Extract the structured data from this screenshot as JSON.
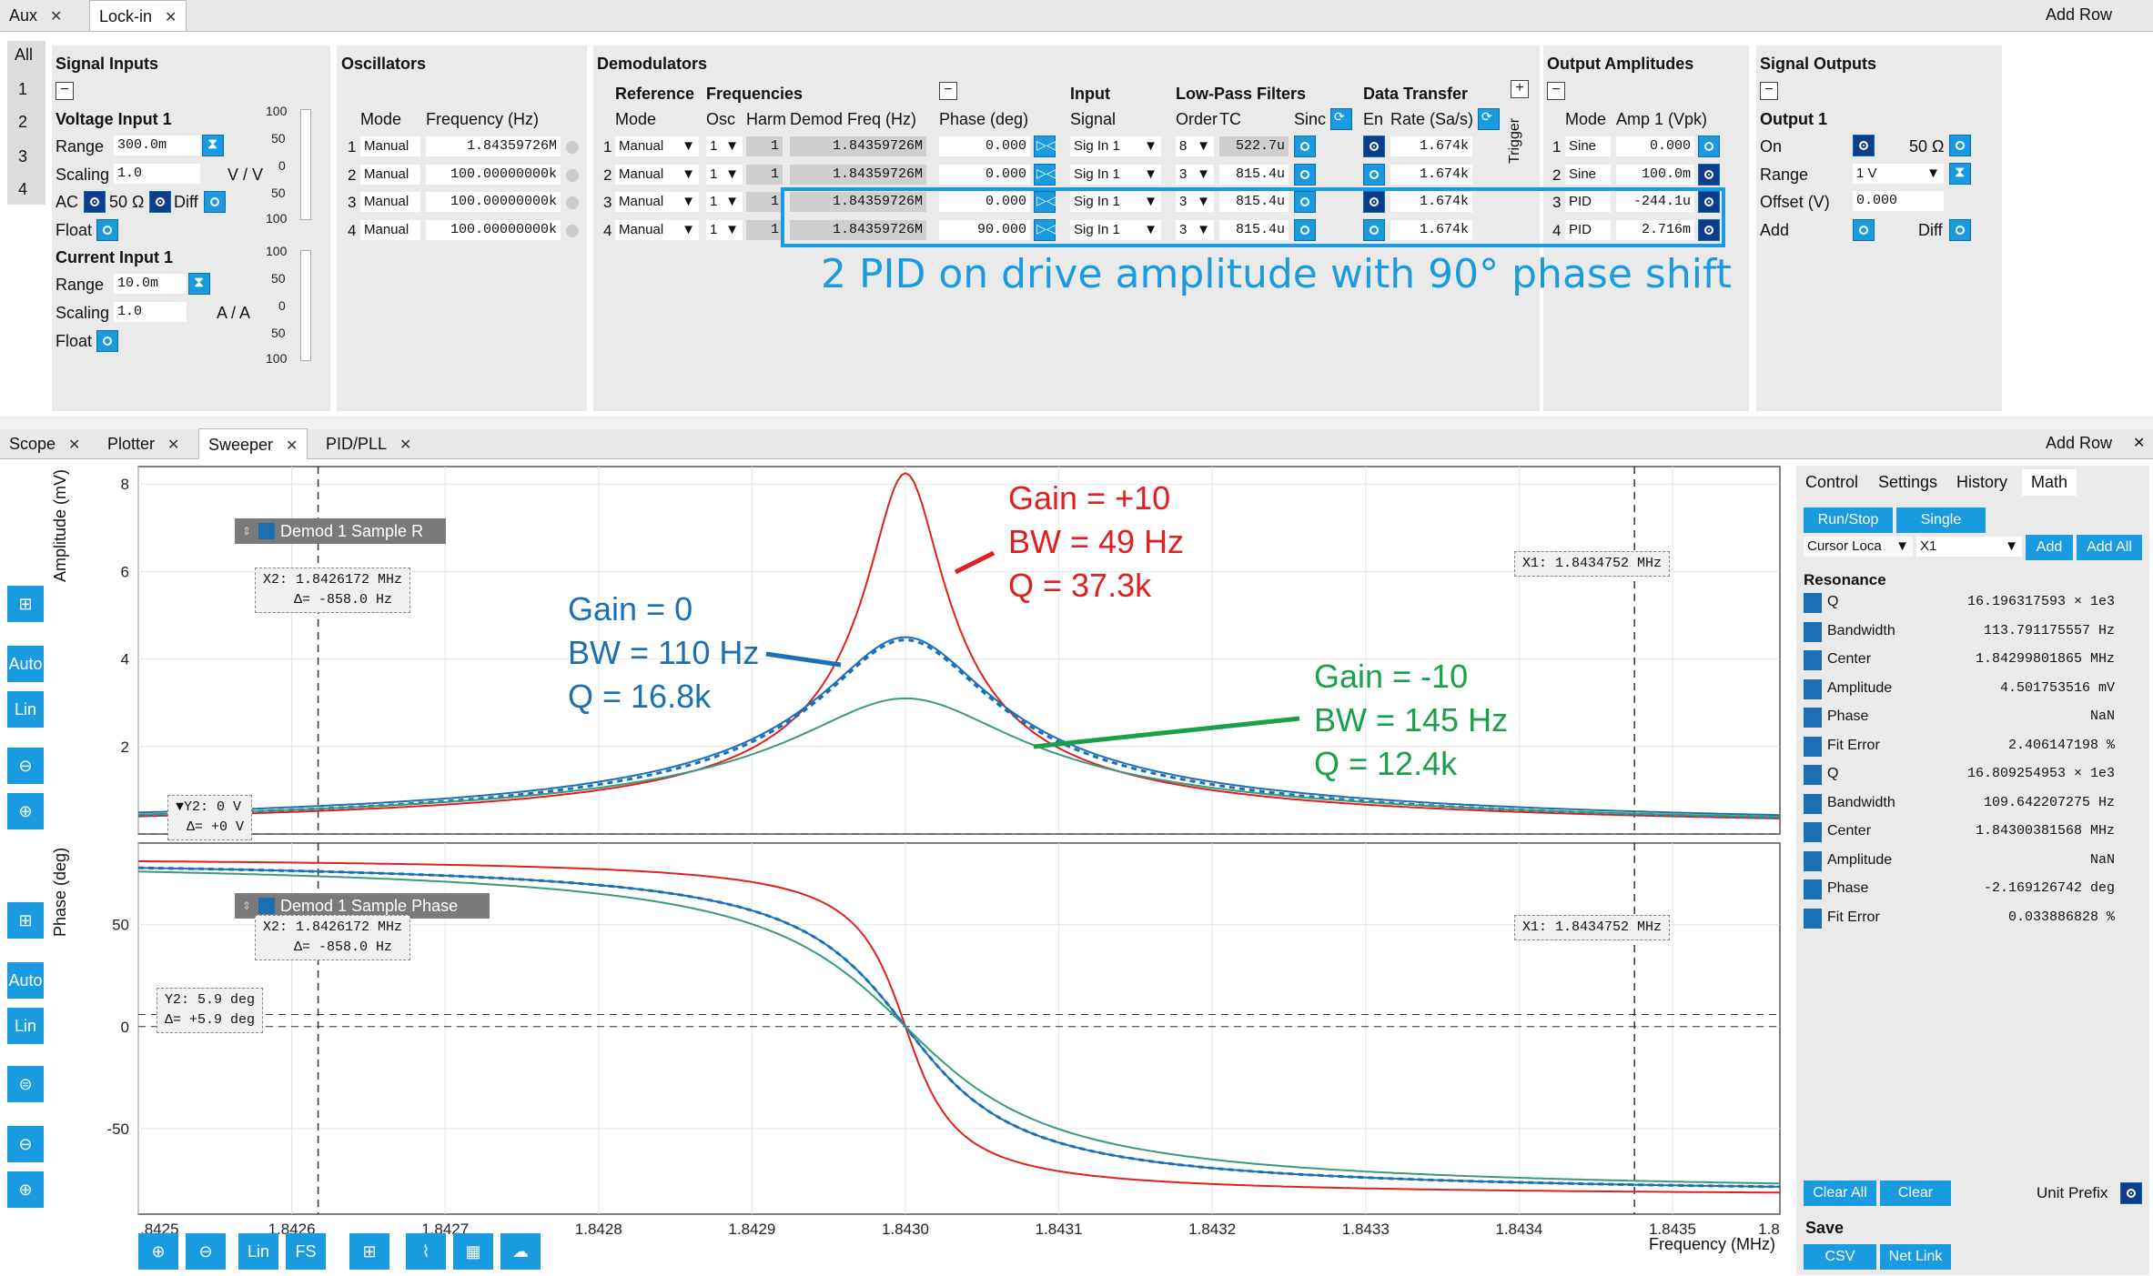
{
  "top_tabs": [
    {
      "label": "Aux"
    },
    {
      "label": "Lock-in"
    }
  ],
  "add_row": "Add Row",
  "side_tabs": [
    "All",
    "1",
    "2",
    "3",
    "4"
  ],
  "signal_inputs": {
    "title": "Signal Inputs",
    "voltage_input": "Voltage Input 1",
    "range_label": "Range",
    "range_value": "300.0m",
    "scaling_label": "Scaling",
    "scaling_value": "1.0",
    "scaling_unit": "V / V",
    "ac": "AC",
    "ohm": "50 Ω",
    "diff": "Diff",
    "float": "Float",
    "current_input": "Current Input 1",
    "crange_value": "10.0m",
    "cscaling_value": "1.0",
    "cscaling_unit": "A / A",
    "ticks": [
      "100",
      "50",
      "0",
      "50",
      "100"
    ]
  },
  "oscillators": {
    "title": "Oscillators",
    "col_mode": "Mode",
    "col_freq": "Frequency (Hz)",
    "rows": [
      {
        "n": "1",
        "mode": "Manual",
        "freq": "1.84359726M"
      },
      {
        "n": "2",
        "mode": "Manual",
        "freq": "100.00000000k"
      },
      {
        "n": "3",
        "mode": "Manual",
        "freq": "100.00000000k"
      },
      {
        "n": "4",
        "mode": "Manual",
        "freq": "100.00000000k"
      }
    ]
  },
  "demodulators": {
    "title": "Demodulators",
    "reference": "Reference",
    "frequencies": "Frequencies",
    "input": "Input",
    "lpf": "Low-Pass Filters",
    "data_transfer": "Data Transfer",
    "trigger": "Trigger",
    "cols": {
      "mode": "Mode",
      "osc": "Osc",
      "harm": "Harm",
      "demod_freq": "Demod Freq (Hz)",
      "phase": "Phase (deg)",
      "signal": "Signal",
      "order": "Order",
      "tc": "TC",
      "sinc": "Sinc",
      "en": "En",
      "rate": "Rate (Sa/s)"
    },
    "rows": [
      {
        "n": "1",
        "mode": "Manual",
        "osc": "1",
        "harm": "1",
        "freq": "1.84359726M",
        "phase": "0.000",
        "signal": "Sig In 1",
        "order": "8",
        "tc": "522.7u",
        "rate": "1.674k"
      },
      {
        "n": "2",
        "mode": "Manual",
        "osc": "1",
        "harm": "1",
        "freq": "1.84359726M",
        "phase": "0.000",
        "signal": "Sig In 1",
        "order": "3",
        "tc": "815.4u",
        "rate": "1.674k"
      },
      {
        "n": "3",
        "mode": "Manual",
        "osc": "1",
        "harm": "1",
        "freq": "1.84359726M",
        "phase": "0.000",
        "signal": "Sig In 1",
        "order": "3",
        "tc": "815.4u",
        "rate": "1.674k"
      },
      {
        "n": "4",
        "mode": "Manual",
        "osc": "1",
        "harm": "1",
        "freq": "1.84359726M",
        "phase": "90.000",
        "signal": "Sig In 1",
        "order": "3",
        "tc": "815.4u",
        "rate": "1.674k"
      }
    ]
  },
  "output_amplitudes": {
    "title": "Output Amplitudes",
    "col_mode": "Mode",
    "col_amp": "Amp 1 (Vpk)",
    "rows": [
      {
        "n": "1",
        "mode": "Sine",
        "amp": "0.000"
      },
      {
        "n": "2",
        "mode": "Sine",
        "amp": "100.0m"
      },
      {
        "n": "3",
        "mode": "PID",
        "amp": "-244.1u"
      },
      {
        "n": "4",
        "mode": "PID",
        "amp": "2.716m"
      }
    ]
  },
  "signal_outputs": {
    "title": "Signal Outputs",
    "output": "Output 1",
    "on": "On",
    "ohm": "50 Ω",
    "range": "Range",
    "range_value": "1 V",
    "offset": "Offset (V)",
    "offset_value": "0.000",
    "add": "Add",
    "diff": "Diff"
  },
  "pid_annotation": "2 PID on drive amplitude with 90° phase shift",
  "bottom_tabs": [
    {
      "label": "Scope"
    },
    {
      "label": "Plotter"
    },
    {
      "label": "Sweeper"
    },
    {
      "label": "PID/PLL"
    }
  ],
  "side_buttons": {
    "auto": "Auto",
    "lin": "Lin"
  },
  "top_plot": {
    "ylabel": "Amplitude (mV)",
    "legend": "Demod 1 Sample R",
    "x2": "X2: 1.8426172 MHz",
    "dx": "Δ= -858.0 Hz",
    "x1": "X1: 1.8434752 MHz",
    "y2": "▼Y2: 0 V",
    "dy": "Δ= +0 V"
  },
  "bottom_plot": {
    "ylabel": "Phase (deg)",
    "legend": "Demod 1 Sample Phase",
    "x2": "X2: 1.8426172 MHz",
    "dx": "Δ= -858.0 Hz",
    "x1": "X1: 1.8434752 MHz",
    "y2": "Y2: 5.9 deg",
    "dy": "Δ= +5.9 deg"
  },
  "xlabel": "Frequency (MHz)",
  "bottom_toolbar": {
    "lin": "Lin",
    "fs": "FS"
  },
  "annotations": {
    "red": [
      "Gain = +10",
      "BW = 49 Hz",
      "Q = 37.3k"
    ],
    "blue": [
      "Gain = 0",
      "BW = 110 Hz",
      "Q = 16.8k"
    ],
    "green": [
      "Gain = -10",
      "BW = 145 Hz",
      "Q = 12.4k"
    ]
  },
  "colors": {
    "red": "#e02020",
    "blue": "#1a6fb5",
    "green": "#1aa04a",
    "accent": "#1a9be0"
  },
  "math_panel": {
    "tabs": [
      "Control",
      "Settings",
      "History",
      "Math"
    ],
    "run_stop": "Run/Stop",
    "single": "Single",
    "cursor_loc": "Cursor Loca",
    "cursor_sel": "X1",
    "add": "Add",
    "add_all": "Add All",
    "section": "Resonance",
    "rows": [
      {
        "name": "Q",
        "value": "16.196317593 × 1e3"
      },
      {
        "name": "Bandwidth",
        "value": "113.791175557 Hz"
      },
      {
        "name": "Center",
        "value": "1.84299801865 MHz"
      },
      {
        "name": "Amplitude",
        "value": "4.501753516 mV"
      },
      {
        "name": "Phase",
        "value": "NaN"
      },
      {
        "name": "Fit Error",
        "value": "2.406147198 %"
      },
      {
        "name": "Q",
        "value": "16.809254953 × 1e3"
      },
      {
        "name": "Bandwidth",
        "value": "109.642207275 Hz"
      },
      {
        "name": "Center",
        "value": "1.84300381568 MHz"
      },
      {
        "name": "Amplitude",
        "value": "NaN"
      },
      {
        "name": "Phase",
        "value": "-2.169126742 deg"
      },
      {
        "name": "Fit Error",
        "value": "0.033886828 %"
      }
    ],
    "clear_all": "Clear All",
    "clear": "Clear",
    "unit_prefix": "Unit Prefix",
    "save": "Save",
    "csv": "CSV",
    "net_link": "Net Link"
  },
  "chart_data": [
    {
      "type": "line",
      "ylabel": "Amplitude (mV)",
      "xlabel": "Frequency (MHz)",
      "xlim": [
        1.8425,
        1.84357
      ],
      "ylim": [
        0,
        8.4
      ],
      "x_ticks": [
        ".8425",
        "1.8426",
        "1.8427",
        "1.8428",
        "1.8429",
        "1.8430",
        "1.8431",
        "1.8432",
        "1.8433",
        "1.8434",
        "1.8435",
        "1.8"
      ],
      "y_ticks": [
        2,
        4,
        6,
        8
      ],
      "series": [
        {
          "name": "Gain = +10",
          "color": "#e02020",
          "center": 1.843,
          "peak": 8.25,
          "bw_hz": 49
        },
        {
          "name": "Gain = 0",
          "color": "#1a6fb5",
          "center": 1.843,
          "peak": 4.5,
          "bw_hz": 110
        },
        {
          "name": "Gain = -10",
          "color": "#3a9a7a",
          "center": 1.843,
          "peak": 3.1,
          "bw_hz": 145
        }
      ]
    },
    {
      "type": "line",
      "ylabel": "Phase (deg)",
      "xlabel": "Frequency (MHz)",
      "xlim": [
        1.8425,
        1.84357
      ],
      "ylim": [
        -92,
        90
      ],
      "y_ticks": [
        50,
        0,
        -50
      ],
      "series": [
        {
          "name": "Gain = +10",
          "color": "#e02020",
          "bw_hz": 49
        },
        {
          "name": "Gain = 0",
          "color": "#1a6fb5",
          "bw_hz": 110
        },
        {
          "name": "Gain = -10",
          "color": "#3a9a7a",
          "bw_hz": 145
        }
      ]
    }
  ]
}
